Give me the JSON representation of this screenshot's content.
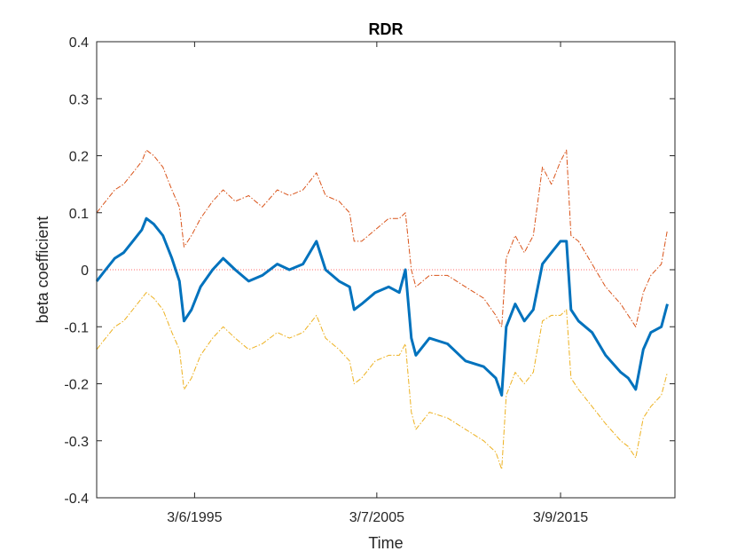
{
  "chart_data": {
    "type": "line",
    "title": "RDR",
    "xlabel": "Time",
    "ylabel": "beta coefficient",
    "xlim": [
      "1990-01-01",
      "2022-01-01"
    ],
    "ylim": [
      -0.4,
      0.4
    ],
    "xticks": [
      {
        "date": "1995-06-03",
        "label": "3/6/1995"
      },
      {
        "date": "2005-07-03",
        "label": "3/7/2005"
      },
      {
        "date": "2015-09-03",
        "label": "3/9/2015"
      }
    ],
    "yticks": [
      {
        "value": 0.4,
        "label": "0.4"
      },
      {
        "value": 0.3,
        "label": "0.3"
      },
      {
        "value": 0.2,
        "label": "0.2"
      },
      {
        "value": 0.1,
        "label": "0.1"
      },
      {
        "value": 0,
        "label": "0"
      },
      {
        "value": -0.1,
        "label": "-0.1"
      },
      {
        "value": -0.2,
        "label": "-0.2"
      },
      {
        "value": -0.3,
        "label": "-0.3"
      },
      {
        "value": -0.4,
        "label": "-0.4"
      }
    ],
    "grid": false,
    "legend": "none",
    "zero_line": {
      "value": 0,
      "color": "#ff6b6b",
      "style": "dotted"
    },
    "series": [
      {
        "color": "#D95319",
        "style": "dash-dot",
        "points": [
          [
            "1990-01-01",
            0.1
          ],
          [
            "1990-07-01",
            0.12
          ],
          [
            "1991-01-01",
            0.14
          ],
          [
            "1991-07-01",
            0.15
          ],
          [
            "1992-01-01",
            0.17
          ],
          [
            "1992-07-01",
            0.19
          ],
          [
            "1992-10-01",
            0.21
          ],
          [
            "1993-03-01",
            0.2
          ],
          [
            "1993-09-01",
            0.18
          ],
          [
            "1994-03-01",
            0.14
          ],
          [
            "1994-08-01",
            0.11
          ],
          [
            "1994-11-01",
            0.04
          ],
          [
            "1995-04-01",
            0.06
          ],
          [
            "1995-10-01",
            0.09
          ],
          [
            "1996-06-01",
            0.12
          ],
          [
            "1997-01-01",
            0.14
          ],
          [
            "1997-09-01",
            0.12
          ],
          [
            "1998-06-01",
            0.13
          ],
          [
            "1999-03-01",
            0.11
          ],
          [
            "2000-01-01",
            0.14
          ],
          [
            "2000-09-01",
            0.13
          ],
          [
            "2001-06-01",
            0.14
          ],
          [
            "2002-03-01",
            0.17
          ],
          [
            "2002-09-01",
            0.13
          ],
          [
            "2003-06-01",
            0.12
          ],
          [
            "2004-01-01",
            0.1
          ],
          [
            "2004-04-01",
            0.05
          ],
          [
            "2004-09-01",
            0.05
          ],
          [
            "2005-06-01",
            0.07
          ],
          [
            "2006-03-01",
            0.09
          ],
          [
            "2006-10-01",
            0.09
          ],
          [
            "2007-02-01",
            0.1
          ],
          [
            "2007-06-01",
            0.0
          ],
          [
            "2007-09-01",
            -0.03
          ],
          [
            "2008-06-01",
            -0.01
          ],
          [
            "2009-06-01",
            -0.01
          ],
          [
            "2010-06-01",
            -0.03
          ],
          [
            "2011-06-01",
            -0.05
          ],
          [
            "2012-02-01",
            -0.08
          ],
          [
            "2012-06-01",
            -0.1
          ],
          [
            "2012-09-01",
            0.02
          ],
          [
            "2013-03-01",
            0.06
          ],
          [
            "2013-09-01",
            0.03
          ],
          [
            "2014-03-01",
            0.06
          ],
          [
            "2014-09-01",
            0.18
          ],
          [
            "2015-03-01",
            0.15
          ],
          [
            "2015-09-01",
            0.19
          ],
          [
            "2016-01-01",
            0.21
          ],
          [
            "2016-04-01",
            0.06
          ],
          [
            "2016-09-01",
            0.05
          ],
          [
            "2017-06-01",
            0.01
          ],
          [
            "2018-03-01",
            -0.03
          ],
          [
            "2019-01-01",
            -0.06
          ],
          [
            "2019-06-01",
            -0.08
          ],
          [
            "2019-11-01",
            -0.1
          ],
          [
            "2020-04-01",
            -0.04
          ],
          [
            "2020-09-01",
            -0.01
          ],
          [
            "2021-04-01",
            0.01
          ],
          [
            "2021-08-01",
            0.07
          ]
        ]
      },
      {
        "color": "#0072BD",
        "style": "solid",
        "points": [
          [
            "1990-01-01",
            -0.02
          ],
          [
            "1990-07-01",
            0.0
          ],
          [
            "1991-01-01",
            0.02
          ],
          [
            "1991-07-01",
            0.03
          ],
          [
            "1992-01-01",
            0.05
          ],
          [
            "1992-07-01",
            0.07
          ],
          [
            "1992-10-01",
            0.09
          ],
          [
            "1993-03-01",
            0.08
          ],
          [
            "1993-09-01",
            0.06
          ],
          [
            "1994-03-01",
            0.02
          ],
          [
            "1994-08-01",
            -0.02
          ],
          [
            "1994-11-01",
            -0.09
          ],
          [
            "1995-04-01",
            -0.07
          ],
          [
            "1995-10-01",
            -0.03
          ],
          [
            "1996-06-01",
            0.0
          ],
          [
            "1997-01-01",
            0.02
          ],
          [
            "1997-09-01",
            0.0
          ],
          [
            "1998-06-01",
            -0.02
          ],
          [
            "1999-03-01",
            -0.01
          ],
          [
            "2000-01-01",
            0.01
          ],
          [
            "2000-09-01",
            0.0
          ],
          [
            "2001-06-01",
            0.01
          ],
          [
            "2002-03-01",
            0.05
          ],
          [
            "2002-09-01",
            0.0
          ],
          [
            "2003-06-01",
            -0.02
          ],
          [
            "2004-01-01",
            -0.03
          ],
          [
            "2004-04-01",
            -0.07
          ],
          [
            "2004-09-01",
            -0.06
          ],
          [
            "2005-06-01",
            -0.04
          ],
          [
            "2006-03-01",
            -0.03
          ],
          [
            "2006-10-01",
            -0.04
          ],
          [
            "2007-02-01",
            0.0
          ],
          [
            "2007-06-01",
            -0.12
          ],
          [
            "2007-09-01",
            -0.15
          ],
          [
            "2008-06-01",
            -0.12
          ],
          [
            "2009-06-01",
            -0.13
          ],
          [
            "2010-06-01",
            -0.16
          ],
          [
            "2011-06-01",
            -0.17
          ],
          [
            "2012-02-01",
            -0.19
          ],
          [
            "2012-06-01",
            -0.22
          ],
          [
            "2012-09-01",
            -0.1
          ],
          [
            "2013-03-01",
            -0.06
          ],
          [
            "2013-09-01",
            -0.09
          ],
          [
            "2014-03-01",
            -0.07
          ],
          [
            "2014-09-01",
            0.01
          ],
          [
            "2015-03-01",
            0.03
          ],
          [
            "2015-09-01",
            0.05
          ],
          [
            "2016-01-01",
            0.05
          ],
          [
            "2016-04-01",
            -0.07
          ],
          [
            "2016-09-01",
            -0.09
          ],
          [
            "2017-06-01",
            -0.11
          ],
          [
            "2018-03-01",
            -0.15
          ],
          [
            "2019-01-01",
            -0.18
          ],
          [
            "2019-06-01",
            -0.19
          ],
          [
            "2019-11-01",
            -0.21
          ],
          [
            "2020-04-01",
            -0.14
          ],
          [
            "2020-09-01",
            -0.11
          ],
          [
            "2021-04-01",
            -0.1
          ],
          [
            "2021-08-01",
            -0.06
          ]
        ]
      },
      {
        "color": "#EDB120",
        "style": "dash-dot",
        "points": [
          [
            "1990-01-01",
            -0.14
          ],
          [
            "1990-07-01",
            -0.12
          ],
          [
            "1991-01-01",
            -0.1
          ],
          [
            "1991-07-01",
            -0.09
          ],
          [
            "1992-01-01",
            -0.07
          ],
          [
            "1992-07-01",
            -0.05
          ],
          [
            "1992-10-01",
            -0.04
          ],
          [
            "1993-03-01",
            -0.05
          ],
          [
            "1993-09-01",
            -0.07
          ],
          [
            "1994-03-01",
            -0.11
          ],
          [
            "1994-08-01",
            -0.14
          ],
          [
            "1994-11-01",
            -0.21
          ],
          [
            "1995-04-01",
            -0.19
          ],
          [
            "1995-10-01",
            -0.15
          ],
          [
            "1996-06-01",
            -0.12
          ],
          [
            "1997-01-01",
            -0.1
          ],
          [
            "1997-09-01",
            -0.12
          ],
          [
            "1998-06-01",
            -0.14
          ],
          [
            "1999-03-01",
            -0.13
          ],
          [
            "2000-01-01",
            -0.11
          ],
          [
            "2000-09-01",
            -0.12
          ],
          [
            "2001-06-01",
            -0.11
          ],
          [
            "2002-03-01",
            -0.08
          ],
          [
            "2002-09-01",
            -0.12
          ],
          [
            "2003-06-01",
            -0.14
          ],
          [
            "2004-01-01",
            -0.16
          ],
          [
            "2004-04-01",
            -0.2
          ],
          [
            "2004-09-01",
            -0.19
          ],
          [
            "2005-06-01",
            -0.16
          ],
          [
            "2006-03-01",
            -0.15
          ],
          [
            "2006-10-01",
            -0.15
          ],
          [
            "2007-02-01",
            -0.13
          ],
          [
            "2007-06-01",
            -0.25
          ],
          [
            "2007-09-01",
            -0.28
          ],
          [
            "2008-06-01",
            -0.25
          ],
          [
            "2009-06-01",
            -0.26
          ],
          [
            "2010-06-01",
            -0.28
          ],
          [
            "2011-06-01",
            -0.3
          ],
          [
            "2012-02-01",
            -0.32
          ],
          [
            "2012-06-01",
            -0.35
          ],
          [
            "2012-09-01",
            -0.22
          ],
          [
            "2013-03-01",
            -0.18
          ],
          [
            "2013-09-01",
            -0.2
          ],
          [
            "2014-03-01",
            -0.18
          ],
          [
            "2014-09-01",
            -0.09
          ],
          [
            "2015-03-01",
            -0.08
          ],
          [
            "2015-09-01",
            -0.08
          ],
          [
            "2016-01-01",
            -0.07
          ],
          [
            "2016-04-01",
            -0.19
          ],
          [
            "2016-09-01",
            -0.21
          ],
          [
            "2017-06-01",
            -0.24
          ],
          [
            "2018-03-01",
            -0.27
          ],
          [
            "2019-01-01",
            -0.3
          ],
          [
            "2019-06-01",
            -0.31
          ],
          [
            "2019-11-01",
            -0.33
          ],
          [
            "2020-04-01",
            -0.26
          ],
          [
            "2020-09-01",
            -0.24
          ],
          [
            "2021-04-01",
            -0.22
          ],
          [
            "2021-08-01",
            -0.18
          ]
        ]
      }
    ]
  }
}
